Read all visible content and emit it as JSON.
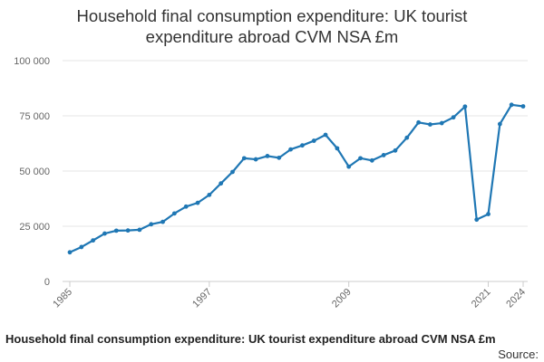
{
  "chart_data": {
    "type": "line",
    "title_lines": [
      "Household final consumption expenditure: UK tourist",
      "expenditure abroad CVM NSA £m"
    ],
    "caption": "Household final consumption expenditure: UK tourist expenditure abroad CVM NSA £m",
    "source_label": "Source:",
    "xlabel": "",
    "ylabel": "",
    "ylim": [
      0,
      100000
    ],
    "xlim": [
      1985,
      2024
    ],
    "y_ticks": [
      {
        "value": 0,
        "label": "0"
      },
      {
        "value": 25000,
        "label": "25 000"
      },
      {
        "value": 50000,
        "label": "50 000"
      },
      {
        "value": 75000,
        "label": "75 000"
      },
      {
        "value": 100000,
        "label": "100 000"
      }
    ],
    "x_ticks": [
      {
        "value": 1985,
        "label": "1985"
      },
      {
        "value": 1997,
        "label": "1997"
      },
      {
        "value": 2009,
        "label": "2009"
      },
      {
        "value": 2021,
        "label": "2021"
      },
      {
        "value": 2024,
        "label": "2024"
      }
    ],
    "grid": true,
    "legend": "none",
    "series": [
      {
        "name": "UK tourist expenditure abroad CVM NSA £m",
        "color": "#1f77b4",
        "x": [
          1985,
          1986,
          1987,
          1988,
          1989,
          1990,
          1991,
          1992,
          1993,
          1994,
          1995,
          1996,
          1997,
          1998,
          1999,
          2000,
          2001,
          2002,
          2003,
          2004,
          2005,
          2006,
          2007,
          2008,
          2009,
          2010,
          2011,
          2012,
          2013,
          2014,
          2015,
          2016,
          2017,
          2018,
          2019,
          2020,
          2021,
          2022,
          2023,
          2024
        ],
        "values": [
          13200,
          15600,
          18600,
          21700,
          23000,
          23100,
          23400,
          25900,
          27000,
          30800,
          33900,
          35600,
          39200,
          44400,
          49600,
          55800,
          55300,
          56800,
          56000,
          59800,
          61600,
          63700,
          66400,
          60300,
          52000,
          55800,
          54800,
          57200,
          59300,
          65100,
          72000,
          71100,
          71700,
          74300,
          79200,
          28000,
          30500,
          71300,
          80000,
          79300
        ]
      }
    ]
  }
}
